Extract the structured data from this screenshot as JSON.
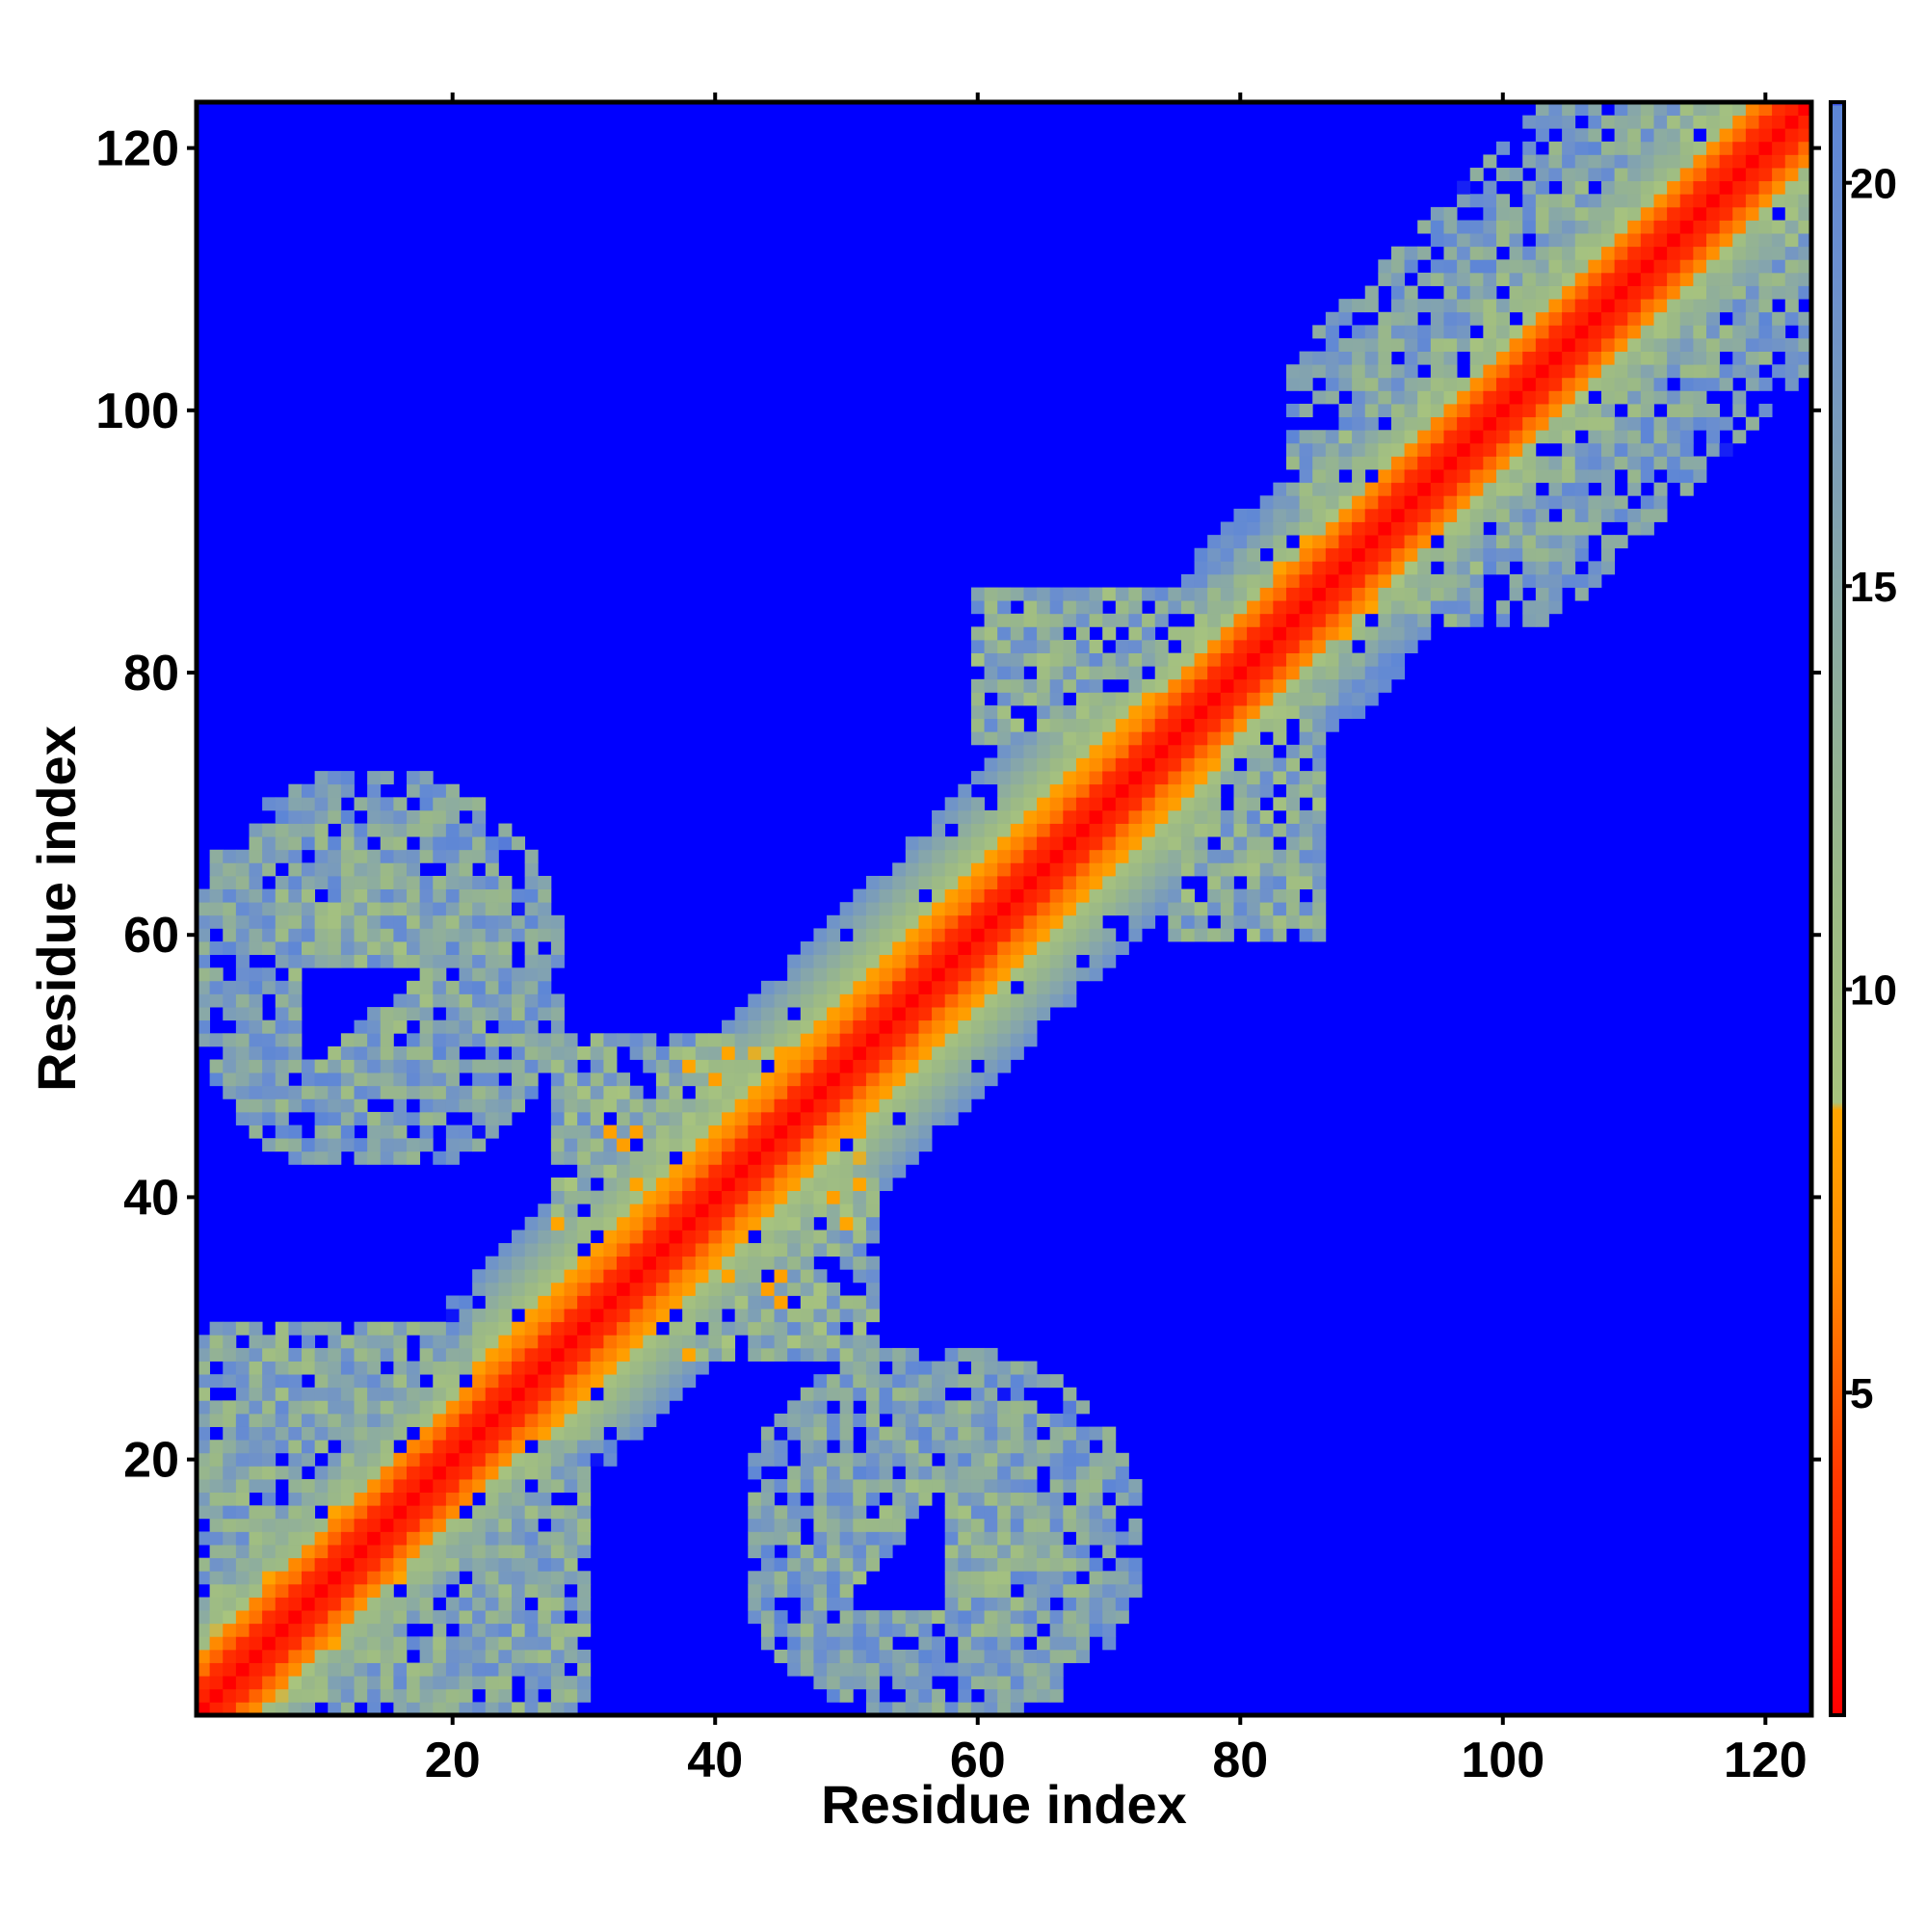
{
  "chart_data": {
    "type": "heatmap",
    "title": "",
    "xlabel": "Residue index",
    "ylabel": "Residue index",
    "xlim": [
      1,
      123
    ],
    "ylim": [
      1,
      123
    ],
    "n_residues": 123,
    "x_ticks": [
      20,
      40,
      60,
      80,
      100,
      120
    ],
    "y_ticks": [
      20,
      40,
      60,
      80,
      100,
      120
    ],
    "colorbar": {
      "range": [
        1,
        21
      ],
      "ticks": [
        5,
        10,
        15,
        20
      ],
      "stops": [
        {
          "value": 1,
          "color": "#ff0000"
        },
        {
          "value": 4,
          "color": "#ff3a00"
        },
        {
          "value": 6.5,
          "color": "#ff8a00"
        },
        {
          "value": 8.5,
          "color": "#ffa500"
        },
        {
          "value": 8.6,
          "color": "#a8c47e"
        },
        {
          "value": 11,
          "color": "#9cba85"
        },
        {
          "value": 15,
          "color": "#88a8a8"
        },
        {
          "value": 19,
          "color": "#6a8ed0"
        },
        {
          "value": 20.95,
          "color": "#5d86d6"
        },
        {
          "value": 21,
          "color": "#0000ff"
        }
      ]
    },
    "background_color": "#0000ff",
    "contact_regions": [
      {
        "x": [
          1,
          28
        ],
        "y": [
          43,
          72
        ],
        "level": "sparse"
      },
      {
        "x": [
          43,
          72
        ],
        "y": [
          1,
          28
        ],
        "level": "sparse"
      },
      {
        "x": [
          1,
          24
        ],
        "y": [
          1,
          30
        ],
        "level": "sparse"
      },
      {
        "x": [
          28,
          45
        ],
        "y": [
          32,
          52
        ],
        "level": "sparse"
      },
      {
        "x": [
          58,
          85
        ],
        "y": [
          58,
          86
        ],
        "level": "sparse"
      },
      {
        "x": [
          85,
          123
        ],
        "y": [
          85,
          123
        ],
        "level": "sparse"
      }
    ]
  }
}
